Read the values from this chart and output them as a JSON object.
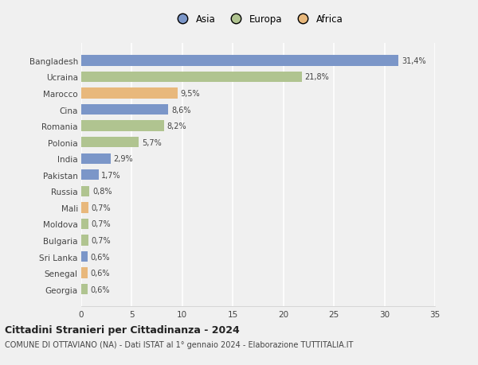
{
  "countries": [
    "Bangladesh",
    "Ucraina",
    "Marocco",
    "Cina",
    "Romania",
    "Polonia",
    "India",
    "Pakistan",
    "Russia",
    "Mali",
    "Moldova",
    "Bulgaria",
    "Sri Lanka",
    "Senegal",
    "Georgia"
  ],
  "values": [
    31.4,
    21.8,
    9.5,
    8.6,
    8.2,
    5.7,
    2.9,
    1.7,
    0.8,
    0.7,
    0.7,
    0.7,
    0.6,
    0.6,
    0.6
  ],
  "labels": [
    "31,4%",
    "21,8%",
    "9,5%",
    "8,6%",
    "8,2%",
    "5,7%",
    "2,9%",
    "1,7%",
    "0,8%",
    "0,7%",
    "0,7%",
    "0,7%",
    "0,6%",
    "0,6%",
    "0,6%"
  ],
  "continents": [
    "Asia",
    "Europa",
    "Africa",
    "Asia",
    "Europa",
    "Europa",
    "Asia",
    "Asia",
    "Europa",
    "Africa",
    "Europa",
    "Europa",
    "Asia",
    "Africa",
    "Europa"
  ],
  "colors": {
    "Asia": "#7b96c8",
    "Europa": "#b0c490",
    "Africa": "#e8b87c"
  },
  "title": "Cittadini Stranieri per Cittadinanza - 2024",
  "subtitle": "COMUNE DI OTTAVIANO (NA) - Dati ISTAT al 1° gennaio 2024 - Elaborazione TUTTITALIA.IT",
  "xlim": [
    0,
    35
  ],
  "xticks": [
    0,
    5,
    10,
    15,
    20,
    25,
    30,
    35
  ],
  "background_color": "#f0f0f0",
  "plot_bg_color": "#f0f0f0",
  "grid_color": "#ffffff",
  "bar_height": 0.65
}
